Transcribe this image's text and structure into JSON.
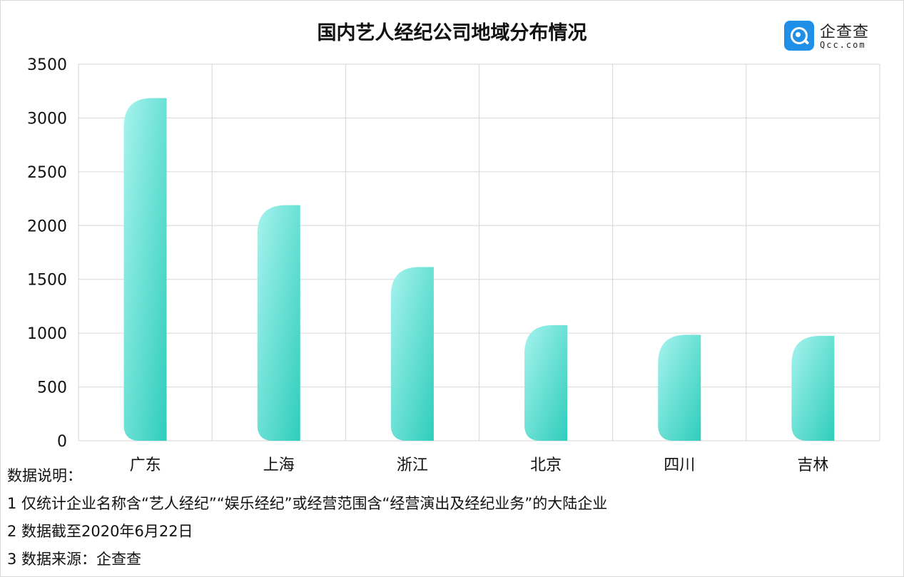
{
  "title": "国内艺人经纪公司地域分布情况",
  "logo": {
    "name": "企查查",
    "domain": "Qcc.com",
    "icon": "search-magnifier-icon",
    "color": "#1f8fe8"
  },
  "notes": {
    "heading": "数据说明：",
    "lines": [
      "1 仅统计企业名称含“艺人经纪”“娱乐经纪”或经营范围含“经营演出及经纪业务”的大陆企业",
      "2 数据截至2020年6月22日",
      "3 数据来源：企查查"
    ]
  },
  "chart_data": {
    "type": "bar",
    "title": "国内艺人经纪公司地域分布情况",
    "categories": [
      "广东",
      "上海",
      "浙江",
      "北京",
      "四川",
      "吉林"
    ],
    "values": [
      3185,
      2190,
      1615,
      1075,
      985,
      975
    ],
    "ylim": [
      0,
      3500
    ],
    "yticks": [
      0,
      500,
      1000,
      1500,
      2000,
      2500,
      3000,
      3500
    ],
    "grid": true,
    "legend": "none",
    "colors": {
      "bar_light": "#a6f3ee",
      "bar_dark": "#2fcdbb",
      "grid": "#d6d6d6"
    }
  }
}
